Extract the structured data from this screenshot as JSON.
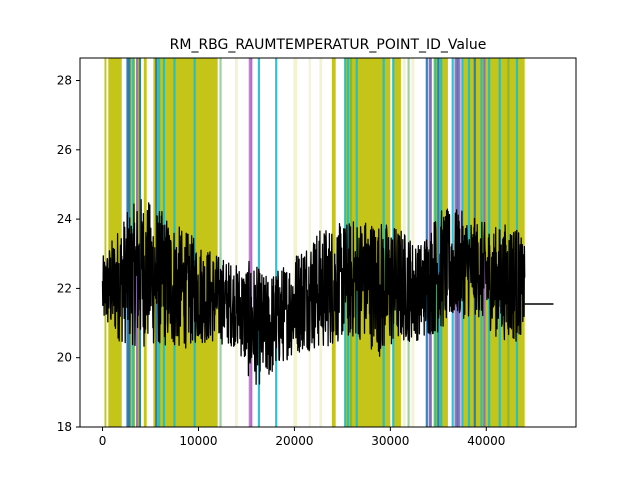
{
  "chart_data": {
    "type": "line",
    "title": "RM_RBG_RAUMTEMPERATUR_POINT_ID_Value",
    "xlabel": "",
    "ylabel": "",
    "xlim": [
      -2350,
      49350
    ],
    "ylim": [
      18,
      28.65
    ],
    "x_ticks": [
      0,
      10000,
      20000,
      30000,
      40000
    ],
    "x_tick_labels": [
      "0",
      "10000",
      "20000",
      "30000",
      "40000"
    ],
    "y_ticks": [
      18,
      20,
      22,
      24,
      26,
      28
    ],
    "y_tick_labels": [
      "18",
      "20",
      "22",
      "24",
      "26",
      "28"
    ],
    "grid": false,
    "series": [
      {
        "color": "#000000",
        "x_range": [
          0,
          44000
        ],
        "tail": {
          "x": [
            44000,
            47000
          ],
          "y": 21.55
        },
        "profile": [
          [
            0,
            21.9,
            1.0
          ],
          [
            2000,
            22.2,
            1.8
          ],
          [
            4000,
            22.5,
            2.2
          ],
          [
            6000,
            22.3,
            2.0
          ],
          [
            8000,
            22.0,
            1.8
          ],
          [
            10000,
            21.9,
            1.5
          ],
          [
            12000,
            21.7,
            1.3
          ],
          [
            14000,
            21.5,
            1.2
          ],
          [
            15500,
            21.0,
            1.8
          ],
          [
            17000,
            20.8,
            1.6
          ],
          [
            19000,
            21.3,
            1.4
          ],
          [
            21000,
            21.8,
            1.6
          ],
          [
            23000,
            22.0,
            1.8
          ],
          [
            25000,
            22.2,
            1.7
          ],
          [
            27000,
            22.3,
            1.8
          ],
          [
            29000,
            22.0,
            2.0
          ],
          [
            31000,
            22.1,
            1.7
          ],
          [
            33000,
            21.9,
            1.4
          ],
          [
            35000,
            22.5,
            1.8
          ],
          [
            37000,
            22.7,
            1.6
          ],
          [
            39000,
            22.6,
            1.4
          ],
          [
            41000,
            22.2,
            1.6
          ],
          [
            43000,
            22.2,
            1.8
          ],
          [
            44000,
            22.0,
            1.2
          ]
        ]
      }
    ],
    "vertical_bands": [
      {
        "name_color": "olive",
        "color": "#bfbf00",
        "alpha": 0.9,
        "regions": [
          [
            200,
            400
          ],
          [
            600,
            2000
          ],
          [
            2600,
            3400
          ],
          [
            3700,
            4000
          ],
          [
            4300,
            4600
          ],
          [
            5300,
            12000
          ],
          [
            23900,
            24300
          ],
          [
            25200,
            30000
          ],
          [
            30300,
            31100
          ],
          [
            34500,
            36000
          ],
          [
            37500,
            44000
          ]
        ]
      },
      {
        "name_color": "light-olive",
        "color": "#bfbf00",
        "alpha": 0.18,
        "regions": [
          [
            13800,
            14100
          ],
          [
            19900,
            20300
          ],
          [
            21500,
            21700
          ],
          [
            22600,
            22900
          ],
          [
            31300,
            31600
          ],
          [
            32200,
            32500
          ]
        ]
      },
      {
        "name_color": "cyan",
        "color": "#17becf",
        "alpha": 0.9,
        "lines": [
          3200,
          5900,
          6400,
          7500,
          9600,
          16300,
          18100,
          25300,
          25600,
          26500,
          29300,
          30300,
          34700,
          35300,
          36500,
          37500,
          38200,
          39500,
          40300,
          41400,
          43200
        ]
      },
      {
        "name_color": "blue",
        "color": "#1f77b4",
        "alpha": 0.9,
        "lines": [
          2600,
          2800,
          3900,
          5600,
          33800,
          34200,
          35000,
          37000,
          38800
        ]
      },
      {
        "name_color": "purple",
        "color": "#9467bd",
        "alpha": 0.9,
        "lines": [
          3600,
          15500,
          34100,
          36800,
          37200,
          39800
        ]
      },
      {
        "name_color": "magenta",
        "color": "#c76fd6",
        "alpha": 0.9,
        "lines": [
          15350
        ]
      },
      {
        "name_color": "green",
        "color": "#4caf50",
        "alpha": 0.55,
        "lines": [
          12300,
          25900,
          31900,
          42300
        ]
      }
    ]
  }
}
